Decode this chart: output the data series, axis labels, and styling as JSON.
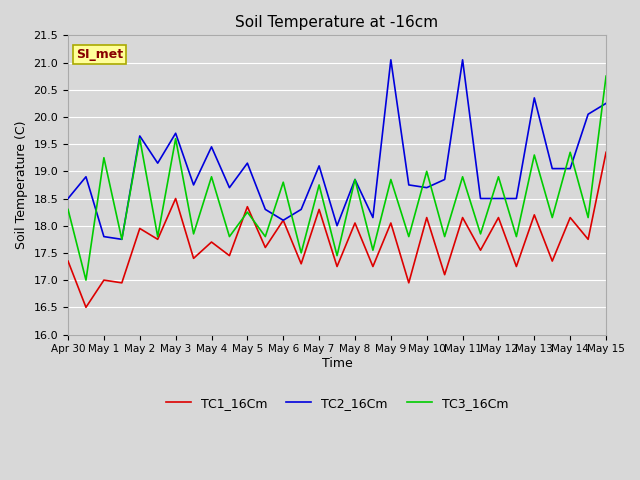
{
  "title": "Soil Temperature at -16cm",
  "xlabel": "Time",
  "ylabel": "Soil Temperature (C)",
  "ylim": [
    16.0,
    21.5
  ],
  "yticks": [
    16.0,
    16.5,
    17.0,
    17.5,
    18.0,
    18.5,
    19.0,
    19.5,
    20.0,
    20.5,
    21.0,
    21.5
  ],
  "background_color": "#d8d8d8",
  "plot_bg_color": "#d8d8d8",
  "grid_color": "#ffffff",
  "annotation_text": "SI_met",
  "annotation_bg": "#ffff99",
  "annotation_border": "#aaaa00",
  "legend_labels": [
    "TC1_16Cm",
    "TC2_16Cm",
    "TC3_16Cm"
  ],
  "line_colors": [
    "#dd0000",
    "#0000dd",
    "#00cc00"
  ],
  "line_width": 1.2,
  "x_labels": [
    "Apr 30",
    "May 1",
    "May 2",
    "May 3",
    "May 4",
    "May 5",
    "May 6",
    "May 7",
    "May 8",
    "May 9",
    "May 10",
    "May 11",
    "May 12",
    "May 13",
    "May 14",
    "May 15"
  ],
  "x_tick_pos": [
    0,
    2,
    4,
    6,
    8,
    10,
    12,
    14,
    16,
    18,
    20,
    22,
    24,
    26,
    28,
    30
  ],
  "xlim": [
    0,
    30
  ],
  "TC1_x": [
    0,
    1,
    2,
    3,
    4,
    5,
    6,
    7,
    8,
    9,
    10,
    11,
    12,
    13,
    14,
    15,
    16,
    17,
    18,
    19,
    20,
    21,
    22,
    23,
    24,
    25,
    26,
    27,
    28,
    29,
    30
  ],
  "TC1_y": [
    17.35,
    16.5,
    17.0,
    16.95,
    17.95,
    17.75,
    18.5,
    17.4,
    17.7,
    17.45,
    18.35,
    17.6,
    18.1,
    17.3,
    18.3,
    17.25,
    18.05,
    17.25,
    18.05,
    16.95,
    18.15,
    17.1,
    18.15,
    17.55,
    18.15,
    17.25,
    18.2,
    17.35,
    18.15,
    17.75,
    19.35
  ],
  "TC2_x": [
    0,
    1,
    2,
    3,
    4,
    5,
    6,
    7,
    8,
    9,
    10,
    11,
    12,
    13,
    14,
    15,
    16,
    17,
    18,
    19,
    20,
    21,
    22,
    23,
    24,
    25,
    26,
    27,
    28,
    29,
    30
  ],
  "TC2_y": [
    18.5,
    18.9,
    17.8,
    17.75,
    19.65,
    19.15,
    19.7,
    18.75,
    19.45,
    18.7,
    19.15,
    18.3,
    18.1,
    18.3,
    19.1,
    18.0,
    18.85,
    18.15,
    21.05,
    18.75,
    18.7,
    18.85,
    21.05,
    18.5,
    18.5,
    18.5,
    20.35,
    19.05,
    19.05,
    20.05,
    20.25
  ],
  "TC3_x": [
    0,
    1,
    2,
    3,
    4,
    5,
    6,
    7,
    8,
    9,
    10,
    11,
    12,
    13,
    14,
    15,
    16,
    17,
    18,
    19,
    20,
    21,
    22,
    23,
    24,
    25,
    26,
    27,
    28,
    29,
    30
  ],
  "TC3_y": [
    18.3,
    17.0,
    19.25,
    17.75,
    19.6,
    17.8,
    19.6,
    17.85,
    18.9,
    17.8,
    18.25,
    17.8,
    18.8,
    17.5,
    18.75,
    17.45,
    18.85,
    17.55,
    18.85,
    17.8,
    19.0,
    17.8,
    18.9,
    17.85,
    18.9,
    17.8,
    19.3,
    18.15,
    19.35,
    18.15,
    20.75
  ]
}
